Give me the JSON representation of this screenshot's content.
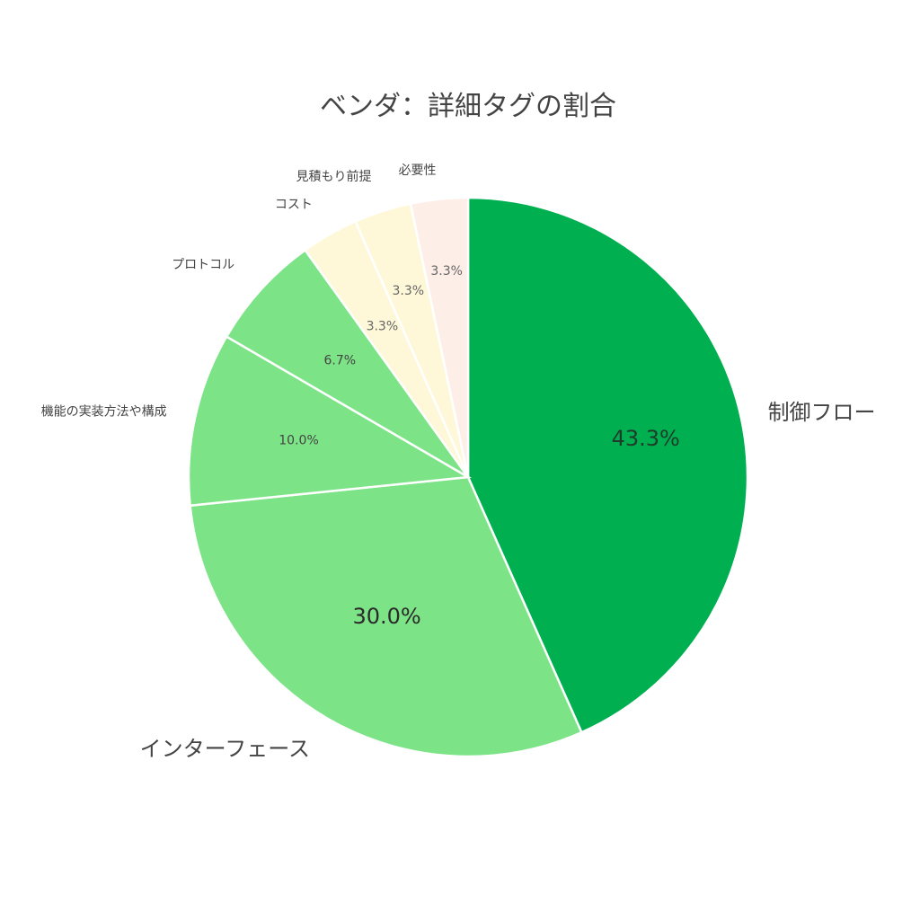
{
  "chart_data": {
    "type": "pie",
    "title": "ベンダ：詳細タグの割合",
    "categories": [
      "制御フロー",
      "インターフェース",
      "機能の実装方法や構成",
      "プロトコル",
      "コスト",
      "見積もり前提",
      "必要性"
    ],
    "values": [
      43.3,
      30.0,
      10.0,
      6.7,
      3.3,
      3.3,
      3.3
    ],
    "value_labels": [
      "43.3%",
      "30.0%",
      "10.0%",
      "6.7%",
      "3.3%",
      "3.3%",
      "3.3%"
    ],
    "colors": [
      "#00b050",
      "#7de387",
      "#7de387",
      "#7de387",
      "#fef8d8",
      "#fef8d8",
      "#fdeee8"
    ],
    "start": "12 o'clock",
    "direction": "clockwise",
    "legend": "none"
  }
}
